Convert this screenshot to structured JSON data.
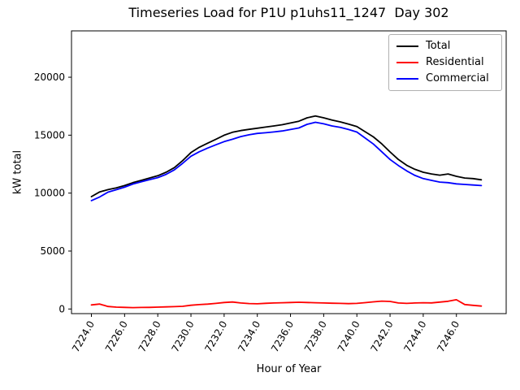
{
  "chart_data": {
    "type": "line",
    "title": "Timeseries Load for P1U p1uhs11_1247  Day 302",
    "xlabel": "Hour of Year",
    "ylabel": "kW total",
    "grid": false,
    "legend": {
      "position": "upper right"
    },
    "xlim": [
      7222.8,
      7249.0
    ],
    "ylim": [
      -400,
      24000
    ],
    "xticks": {
      "values": [
        7224,
        7226,
        7228,
        7230,
        7232,
        7234,
        7236,
        7238,
        7240,
        7242,
        7244,
        7246
      ],
      "labels": [
        "7224.0",
        "7226.0",
        "7228.0",
        "7230.0",
        "7232.0",
        "7234.0",
        "7236.0",
        "7238.0",
        "7240.0",
        "7242.0",
        "7244.0",
        "7246.0"
      ]
    },
    "yticks": {
      "values": [
        0,
        5000,
        10000,
        15000,
        20000
      ],
      "labels": [
        "0",
        "5000",
        "10000",
        "15000",
        "20000"
      ]
    },
    "x": [
      7224.0,
      7224.5,
      7225.0,
      7225.5,
      7226.0,
      7226.5,
      7227.0,
      7227.5,
      7228.0,
      7228.5,
      7229.0,
      7229.5,
      7230.0,
      7230.5,
      7231.0,
      7231.5,
      7232.0,
      7232.5,
      7233.0,
      7233.5,
      7234.0,
      7234.5,
      7235.0,
      7235.5,
      7236.0,
      7236.5,
      7237.0,
      7237.5,
      7238.0,
      7238.5,
      7239.0,
      7239.5,
      7240.0,
      7240.5,
      7241.0,
      7241.5,
      7242.0,
      7242.5,
      7243.0,
      7243.5,
      7244.0,
      7244.5,
      7245.0,
      7245.5,
      7246.0,
      7246.5,
      7247.0,
      7247.5
    ],
    "series": [
      {
        "name": "Total",
        "color": "#000000",
        "values": [
          9700,
          10100,
          10300,
          10450,
          10650,
          10900,
          11100,
          11300,
          11500,
          11800,
          12200,
          12800,
          13500,
          13950,
          14300,
          14650,
          15000,
          15250,
          15400,
          15500,
          15600,
          15700,
          15800,
          15900,
          16050,
          16200,
          16500,
          16650,
          16500,
          16300,
          16150,
          15950,
          15750,
          15300,
          14850,
          14250,
          13550,
          12900,
          12400,
          12050,
          11800,
          11650,
          11550,
          11650,
          11450,
          11300,
          11250,
          11150
        ]
      },
      {
        "name": "Residential",
        "color": "#ff0000",
        "values": [
          350,
          430,
          220,
          160,
          140,
          120,
          130,
          140,
          160,
          180,
          200,
          230,
          320,
          380,
          420,
          480,
          560,
          600,
          520,
          470,
          450,
          490,
          520,
          540,
          560,
          580,
          560,
          540,
          520,
          500,
          480,
          460,
          480,
          550,
          620,
          680,
          650,
          520,
          480,
          520,
          540,
          525,
          595,
          665,
          800,
          385,
          315,
          250
        ]
      },
      {
        "name": "Commercial",
        "color": "#0000ff",
        "values": [
          9350,
          9670,
          10080,
          10290,
          10510,
          10780,
          10970,
          11160,
          11340,
          11620,
          12000,
          12570,
          13180,
          13570,
          13880,
          14170,
          14440,
          14650,
          14880,
          15030,
          15150,
          15210,
          15280,
          15360,
          15490,
          15620,
          15940,
          16110,
          15980,
          15800,
          15670,
          15490,
          15270,
          14750,
          14230,
          13570,
          12900,
          12380,
          11920,
          11530,
          11250,
          11100,
          10950,
          10900,
          10800,
          10750,
          10700,
          10650
        ]
      }
    ]
  }
}
